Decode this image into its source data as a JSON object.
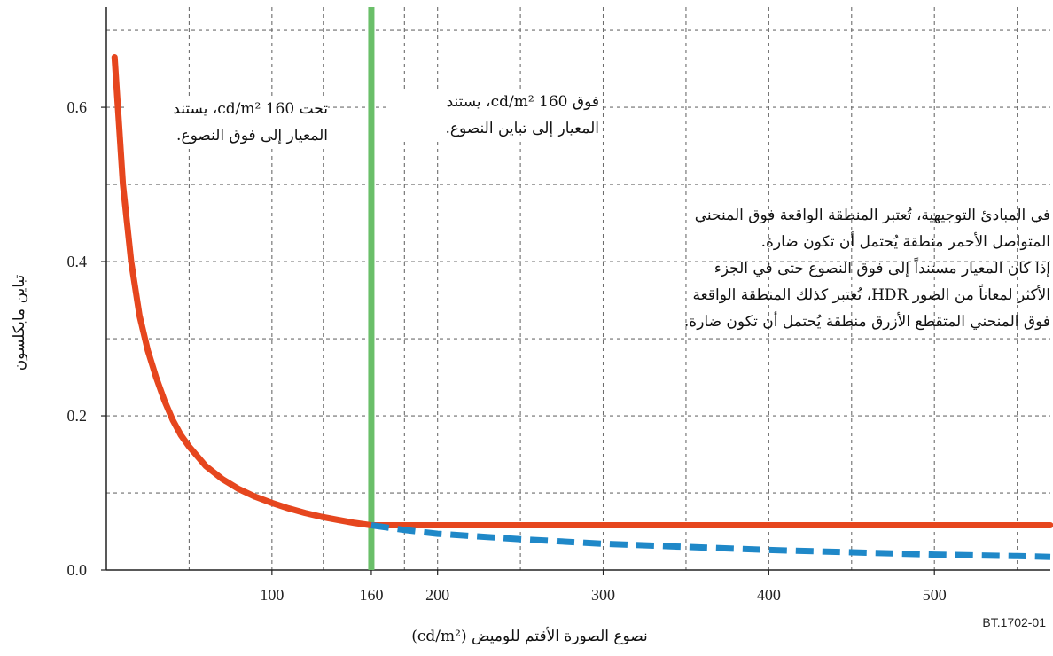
{
  "chart_data": {
    "type": "line",
    "title": "",
    "xlabel": "نصوع الصورة الأقتم للوميض (cd/m²)",
    "ylabel": "تباين مايكلسون",
    "xlim": [
      0,
      570
    ],
    "ylim": [
      0,
      0.73
    ],
    "x_ticks": [
      {
        "value": 100,
        "label": "100"
      },
      {
        "value": 160,
        "label": "160"
      },
      {
        "value": 200,
        "label": "200"
      },
      {
        "value": 300,
        "label": "300"
      },
      {
        "value": 400,
        "label": "400"
      },
      {
        "value": 500,
        "label": "500"
      }
    ],
    "y_ticks": [
      {
        "value": 0.0,
        "label": "0.0"
      },
      {
        "value": 0.2,
        "label": "0.2"
      },
      {
        "value": 0.4,
        "label": "0.4"
      },
      {
        "value": 0.6,
        "label": "0.6"
      }
    ],
    "grid": true,
    "grid_x": [
      50,
      100,
      131,
      160,
      180,
      200,
      250,
      300,
      350,
      400,
      450,
      500,
      550
    ],
    "grid_y": [
      0.1,
      0.2,
      0.3,
      0.4,
      0.5,
      0.6,
      0.7
    ],
    "vertical_marker": {
      "x": 160,
      "color": "#6abf69"
    },
    "series": [
      {
        "style": "solid",
        "color": "#e6461e",
        "x": [
          5,
          10,
          15,
          20,
          25,
          30,
          35,
          40,
          45,
          50,
          60,
          70,
          80,
          90,
          100,
          110,
          120,
          130,
          140,
          150,
          160,
          200,
          300,
          400,
          500,
          570
        ],
        "y": [
          0.665,
          0.5,
          0.4,
          0.33,
          0.285,
          0.25,
          0.22,
          0.195,
          0.175,
          0.16,
          0.135,
          0.118,
          0.105,
          0.095,
          0.087,
          0.08,
          0.074,
          0.069,
          0.065,
          0.061,
          0.058,
          0.058,
          0.058,
          0.058,
          0.058,
          0.058
        ]
      },
      {
        "style": "dashed",
        "color": "#1f88c8",
        "x": [
          160,
          180,
          200,
          250,
          300,
          350,
          400,
          450,
          500,
          550,
          570
        ],
        "y": [
          0.058,
          0.052,
          0.047,
          0.04,
          0.034,
          0.03,
          0.026,
          0.023,
          0.02,
          0.018,
          0.017
        ]
      }
    ],
    "annotations": {
      "below_160": [
        "تحت cd/m² 160، يستند",
        "المعيار إلى فوق النصوع."
      ],
      "above_160": [
        "فوق cd/m² 160، يستند",
        "المعيار إلى تباين النصوع."
      ],
      "guidance": [
        "في المبادئ التوجيهية، تُعتبر المنطقة الواقعة فوق المنحني",
        "المتواصل الأحمر منطقة يُحتمل أن تكون ضارة.",
        "إذا كان المعيار مستنداً إلى فوق النصوع حتى في الجزء",
        "الأكثر لمعاناً من الصور HDR، تُعتبر كذلك المنطقة الواقعة",
        "فوق المنحني المتقطع الأزرق منطقة يُحتمل أن تكون ضارة."
      ]
    }
  },
  "figure_ref": "BT.1702-01"
}
